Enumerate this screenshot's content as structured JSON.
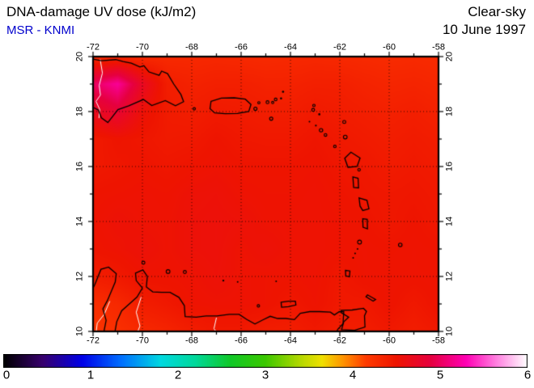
{
  "header": {
    "title": "DNA-damage UV dose (kJ/m2)",
    "source": "MSR - KNMI",
    "source_color": "#0000cc",
    "condition": "Clear-sky",
    "date": "10 June 1997"
  },
  "axes": {
    "lon": {
      "min": -72,
      "max": -58,
      "minor_step": 1,
      "major_ticks": [
        -72,
        -70,
        -68,
        -66,
        -64,
        -62,
        -60,
        -58
      ],
      "labels": [
        "-72",
        "-70",
        "-68",
        "-66",
        "-64",
        "-62",
        "-60",
        "-58"
      ]
    },
    "lat": {
      "min": 10,
      "max": 20,
      "minor_step": 1,
      "major_ticks": [
        10,
        12,
        14,
        16,
        18,
        20
      ],
      "labels": [
        "10",
        "12",
        "14",
        "16",
        "18",
        "20"
      ]
    }
  },
  "colorbar": {
    "min": 0,
    "max": 6,
    "values": [
      0,
      1,
      2,
      3,
      4,
      5,
      6
    ],
    "labels": [
      "0",
      "1",
      "2",
      "3",
      "4",
      "5",
      "6"
    ],
    "stops": [
      [
        0.0,
        "#000000"
      ],
      [
        0.45,
        "#38006e"
      ],
      [
        0.9,
        "#0000e8"
      ],
      [
        1.35,
        "#0070ff"
      ],
      [
        1.8,
        "#00d8e0"
      ],
      [
        2.2,
        "#00d89a"
      ],
      [
        2.6,
        "#10c828"
      ],
      [
        3.0,
        "#3cc800"
      ],
      [
        3.4,
        "#b4d800"
      ],
      [
        3.65,
        "#f0e000"
      ],
      [
        3.9,
        "#ff9000"
      ],
      [
        4.15,
        "#ff3c00"
      ],
      [
        4.5,
        "#ee1400"
      ],
      [
        4.9,
        "#e60040"
      ],
      [
        5.3,
        "#ff00b4"
      ],
      [
        5.65,
        "#ff80e0"
      ],
      [
        6.0,
        "#ffffff"
      ]
    ]
  },
  "chart_data": {
    "type": "heatmap",
    "title": "DNA-damage UV dose (kJ/m2)",
    "condition": "Clear-sky",
    "date": "10 June 1997",
    "lon_range": [
      -72,
      -58
    ],
    "lat_range": [
      10,
      20
    ],
    "value_range": [
      0,
      6
    ],
    "lon_values": [
      -72,
      -71,
      -70,
      -69,
      -68,
      -67,
      -66,
      -65,
      -64,
      -63,
      -62,
      -61,
      -60,
      -59,
      -58
    ],
    "lat_values": [
      20,
      19,
      18,
      17,
      16,
      15,
      14,
      13,
      12,
      11,
      10
    ],
    "values": [
      [
        4.3,
        4.32,
        4.3,
        4.31,
        4.32,
        4.33,
        4.32,
        4.31,
        4.32,
        4.33,
        4.32,
        4.31,
        4.3,
        4.31,
        4.3
      ],
      [
        5.0,
        5.2,
        4.72,
        4.42,
        4.38,
        4.4,
        4.4,
        4.38,
        4.38,
        4.4,
        4.4,
        4.37,
        4.35,
        4.36,
        4.34
      ],
      [
        4.68,
        4.82,
        4.55,
        4.44,
        4.42,
        4.45,
        4.44,
        4.42,
        4.42,
        4.45,
        4.43,
        4.41,
        4.39,
        4.41,
        4.38
      ],
      [
        4.45,
        4.5,
        4.48,
        4.45,
        4.46,
        4.5,
        4.47,
        4.46,
        4.46,
        4.49,
        4.46,
        4.44,
        4.42,
        4.44,
        4.42
      ],
      [
        4.46,
        4.48,
        4.5,
        4.48,
        4.5,
        4.52,
        4.5,
        4.5,
        4.5,
        4.51,
        4.48,
        4.47,
        4.44,
        4.46,
        4.44
      ],
      [
        4.5,
        4.51,
        4.52,
        4.51,
        4.54,
        4.55,
        4.52,
        4.51,
        4.51,
        4.52,
        4.5,
        4.48,
        4.47,
        4.48,
        4.46
      ],
      [
        4.51,
        4.54,
        4.52,
        4.52,
        4.55,
        4.56,
        4.55,
        4.52,
        4.52,
        4.52,
        4.51,
        4.5,
        4.47,
        4.5,
        4.47
      ],
      [
        4.5,
        4.52,
        4.55,
        4.52,
        4.55,
        4.56,
        4.52,
        4.55,
        4.52,
        4.52,
        4.51,
        4.51,
        4.5,
        4.51,
        4.5
      ],
      [
        4.42,
        4.46,
        4.51,
        4.51,
        4.52,
        4.55,
        4.52,
        4.51,
        4.51,
        4.52,
        4.47,
        4.51,
        4.51,
        4.51,
        4.51
      ],
      [
        4.28,
        4.32,
        4.42,
        4.46,
        4.51,
        4.52,
        4.52,
        4.51,
        4.47,
        4.51,
        4.46,
        4.46,
        4.51,
        4.46,
        4.51
      ],
      [
        4.22,
        4.26,
        4.32,
        4.36,
        4.42,
        4.46,
        4.46,
        4.42,
        4.42,
        4.46,
        4.42,
        4.42,
        4.46,
        4.42,
        4.46
      ]
    ]
  },
  "map_overlays": {
    "coastline_color": "#000000",
    "border_color": "#ffffff",
    "paths": [
      {
        "name": "hispaniola-coast",
        "closed": false,
        "pts": [
          [
            -72.15,
            19.93
          ],
          [
            -71.66,
            19.85
          ],
          [
            -71.08,
            19.89
          ],
          [
            -70.78,
            19.82
          ],
          [
            -70.45,
            19.76
          ],
          [
            -70.1,
            19.62
          ],
          [
            -69.94,
            19.67
          ],
          [
            -69.73,
            19.44
          ],
          [
            -69.32,
            19.32
          ],
          [
            -69.22,
            19.47
          ],
          [
            -68.98,
            19.38
          ],
          [
            -68.73,
            19.0
          ],
          [
            -68.44,
            18.62
          ],
          [
            -68.33,
            18.36
          ],
          [
            -68.66,
            18.21
          ],
          [
            -69.07,
            18.4
          ],
          [
            -69.62,
            18.22
          ],
          [
            -69.96,
            18.44
          ],
          [
            -70.55,
            18.21
          ],
          [
            -70.99,
            18.07
          ],
          [
            -71.4,
            17.6
          ],
          [
            -71.66,
            17.77
          ],
          [
            -71.78,
            18.05
          ],
          [
            -72.15,
            18.23
          ]
        ]
      },
      {
        "name": "puerto-rico",
        "closed": true,
        "pts": [
          [
            -67.22,
            18.37
          ],
          [
            -66.8,
            18.49
          ],
          [
            -66.28,
            18.5
          ],
          [
            -65.83,
            18.45
          ],
          [
            -65.6,
            18.26
          ],
          [
            -65.69,
            18.0
          ],
          [
            -66.15,
            17.93
          ],
          [
            -66.65,
            17.92
          ],
          [
            -67.07,
            17.95
          ],
          [
            -67.26,
            18.1
          ]
        ]
      },
      {
        "name": "guadeloupe",
        "closed": true,
        "pts": [
          [
            -61.8,
            16.3
          ],
          [
            -61.55,
            16.52
          ],
          [
            -61.18,
            16.31
          ],
          [
            -61.3,
            16.0
          ],
          [
            -61.67,
            15.97
          ]
        ]
      },
      {
        "name": "dominica",
        "closed": true,
        "pts": [
          [
            -61.47,
            15.62
          ],
          [
            -61.26,
            15.57
          ],
          [
            -61.24,
            15.22
          ],
          [
            -61.44,
            15.24
          ]
        ]
      },
      {
        "name": "martinique",
        "closed": true,
        "pts": [
          [
            -61.22,
            14.86
          ],
          [
            -60.9,
            14.77
          ],
          [
            -60.82,
            14.46
          ],
          [
            -61.07,
            14.4
          ],
          [
            -61.18,
            14.56
          ]
        ]
      },
      {
        "name": "st-lucia",
        "closed": true,
        "pts": [
          [
            -61.07,
            14.1
          ],
          [
            -60.89,
            14.08
          ],
          [
            -60.88,
            13.73
          ],
          [
            -61.06,
            13.79
          ]
        ]
      },
      {
        "name": "grenada",
        "closed": true,
        "pts": [
          [
            -61.77,
            12.22
          ],
          [
            -61.59,
            12.2
          ],
          [
            -61.61,
            11.99
          ],
          [
            -61.76,
            12.02
          ]
        ]
      },
      {
        "name": "tobago",
        "closed": true,
        "pts": [
          [
            -60.88,
            11.33
          ],
          [
            -60.55,
            11.16
          ],
          [
            -60.65,
            11.1
          ],
          [
            -60.94,
            11.26
          ]
        ]
      },
      {
        "name": "trinidad",
        "closed": true,
        "pts": [
          [
            -61.94,
            10.77
          ],
          [
            -61.5,
            10.78
          ],
          [
            -61.04,
            10.84
          ],
          [
            -60.92,
            10.73
          ],
          [
            -61.0,
            10.57
          ],
          [
            -60.98,
            10.16
          ],
          [
            -61.4,
            10.04
          ],
          [
            -61.93,
            10.06
          ],
          [
            -61.84,
            10.35
          ],
          [
            -61.64,
            10.52
          ],
          [
            -61.94,
            10.68
          ]
        ]
      },
      {
        "name": "margarita",
        "closed": true,
        "pts": [
          [
            -64.38,
            11.06
          ],
          [
            -64.08,
            11.1
          ],
          [
            -63.8,
            11.1
          ],
          [
            -63.78,
            10.96
          ],
          [
            -64.08,
            10.9
          ],
          [
            -64.36,
            10.88
          ]
        ]
      },
      {
        "name": "south-america-coast-west",
        "closed": false,
        "pts": [
          [
            -72.15,
            11.32
          ],
          [
            -71.93,
            11.7
          ],
          [
            -71.68,
            12.26
          ],
          [
            -71.37,
            12.34
          ],
          [
            -71.06,
            12.1
          ],
          [
            -71.1,
            11.8
          ],
          [
            -71.42,
            11.12
          ],
          [
            -71.6,
            10.82
          ],
          [
            -71.47,
            10.4
          ],
          [
            -71.58,
            9.9
          ]
        ]
      },
      {
        "name": "south-america-coast-main",
        "closed": false,
        "pts": [
          [
            -71.13,
            9.9
          ],
          [
            -71.04,
            10.35
          ],
          [
            -70.84,
            10.75
          ],
          [
            -70.53,
            11.0
          ],
          [
            -70.22,
            11.25
          ],
          [
            -70.0,
            11.58
          ],
          [
            -70.25,
            11.85
          ],
          [
            -70.28,
            12.12
          ],
          [
            -69.98,
            12.24
          ],
          [
            -69.8,
            12.0
          ],
          [
            -69.84,
            11.62
          ],
          [
            -69.58,
            11.44
          ],
          [
            -69.22,
            11.42
          ],
          [
            -68.88,
            11.42
          ],
          [
            -68.52,
            11.24
          ],
          [
            -68.3,
            10.94
          ],
          [
            -68.27,
            10.54
          ],
          [
            -67.82,
            10.52
          ],
          [
            -67.42,
            10.56
          ],
          [
            -66.98,
            10.56
          ],
          [
            -66.48,
            10.62
          ],
          [
            -66.08,
            10.62
          ],
          [
            -65.78,
            10.44
          ],
          [
            -65.44,
            10.27
          ],
          [
            -65.12,
            10.42
          ],
          [
            -64.82,
            10.55
          ],
          [
            -64.52,
            10.47
          ],
          [
            -64.18,
            10.47
          ],
          [
            -63.84,
            10.43
          ],
          [
            -63.6,
            10.66
          ],
          [
            -63.22,
            10.72
          ],
          [
            -62.82,
            10.72
          ],
          [
            -62.38,
            10.7
          ],
          [
            -62.22,
            10.6
          ],
          [
            -62.02,
            10.72
          ],
          [
            -61.84,
            10.72
          ],
          [
            -61.87,
            10.28
          ],
          [
            -62.08,
            10.08
          ],
          [
            -62.18,
            9.9
          ]
        ]
      }
    ],
    "white_paths": [
      {
        "name": "haiti-dr-border",
        "closed": false,
        "pts": [
          [
            -71.71,
            19.9
          ],
          [
            -71.62,
            19.4
          ],
          [
            -71.75,
            18.95
          ],
          [
            -71.7,
            18.6
          ],
          [
            -71.88,
            18.37
          ],
          [
            -71.73,
            18.08
          ],
          [
            -71.76,
            17.76
          ]
        ]
      },
      {
        "name": "colombia-venezuela-border",
        "closed": false,
        "pts": [
          [
            -71.32,
            11.1
          ],
          [
            -71.55,
            10.62
          ],
          [
            -71.83,
            10.3
          ],
          [
            -71.88,
            9.92
          ]
        ]
      },
      {
        "name": "inland-line-1",
        "closed": false,
        "pts": [
          [
            -70.05,
            11.25
          ],
          [
            -70.25,
            10.7
          ],
          [
            -70.1,
            10.2
          ],
          [
            -70.22,
            9.92
          ]
        ]
      },
      {
        "name": "inland-line-2",
        "closed": false,
        "pts": [
          [
            -67.0,
            10.5
          ],
          [
            -67.1,
            10.1
          ],
          [
            -66.95,
            9.92
          ]
        ]
      }
    ],
    "island_dots": [
      [
        -65.42,
        18.1,
        2.0
      ],
      [
        -65.28,
        18.32,
        1.4
      ],
      [
        -64.93,
        18.34,
        1.8
      ],
      [
        -64.72,
        18.33,
        1.4
      ],
      [
        -64.6,
        18.44,
        1.7
      ],
      [
        -64.38,
        18.48,
        1.3
      ],
      [
        -64.3,
        18.72,
        1.3
      ],
      [
        -64.78,
        17.74,
        2.0
      ],
      [
        -67.9,
        18.1,
        1.5
      ],
      [
        -63.05,
        18.22,
        1.5
      ],
      [
        -63.08,
        18.06,
        1.8
      ],
      [
        -62.83,
        17.9,
        1.3
      ],
      [
        -63.23,
        17.63,
        1.0
      ],
      [
        -62.97,
        17.49,
        1.1
      ],
      [
        -62.76,
        17.32,
        2.1
      ],
      [
        -62.58,
        17.15,
        1.7
      ],
      [
        -61.82,
        17.62,
        1.9
      ],
      [
        -61.78,
        17.07,
        2.3
      ],
      [
        -62.2,
        16.73,
        1.6
      ],
      [
        -61.22,
        15.88,
        1.6
      ],
      [
        -61.2,
        13.25,
        2.4
      ],
      [
        -61.28,
        13.0,
        1.0
      ],
      [
        -61.38,
        12.84,
        1.0
      ],
      [
        -61.46,
        12.68,
        1.0
      ],
      [
        -59.55,
        13.15,
        2.2
      ],
      [
        -69.96,
        12.5,
        1.9
      ],
      [
        -68.96,
        12.18,
        2.3
      ],
      [
        -68.28,
        12.16,
        1.9
      ],
      [
        -66.72,
        11.85,
        1.2
      ],
      [
        -66.14,
        11.8,
        1.0
      ],
      [
        -65.3,
        10.93,
        1.5
      ],
      [
        -64.58,
        11.82,
        1.0
      ]
    ]
  }
}
